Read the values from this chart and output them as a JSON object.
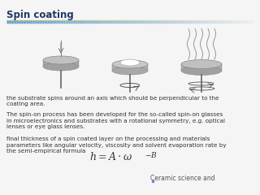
{
  "title": "Spin coating",
  "title_color": "#1f3864",
  "title_fontsize": 8.5,
  "bg_color": "#f5f5f5",
  "line_color_blue": "#5b9bd5",
  "line_color_gold": "#d4c47a",
  "body_texts": [
    "the substrate spins around an axis which should be perpendicular to the\ncoating area.",
    "The spin-on process has been developed for the so-called spin-on glasses\nin microelectronics and substrates with a rotational symmetry, e.g. optical\nlenses or eye glass lenses.",
    "final thickness of a spin coated layer on the processing and materials\nparameters like angular velocity, viscosity and solvent evaporation rate by\nthe semi-empirical formula"
  ],
  "text_color": "#333333",
  "text_fontsize": 5.2,
  "formula_color": "#333333",
  "footer_text": "Ceramic science and",
  "footer_color": "#555555",
  "footer_fontsize": 5.5,
  "disk_color": "#b0b0b0",
  "disk_edge": "#888888"
}
